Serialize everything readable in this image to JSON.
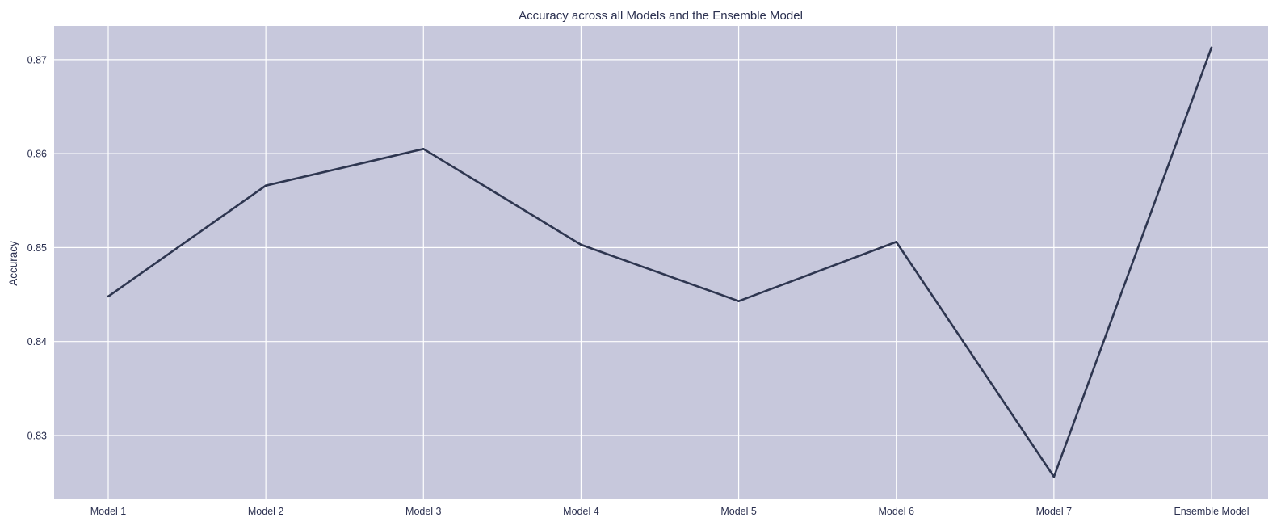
{
  "chart_data": {
    "type": "line",
    "title": "Accuracy across all Models and the Ensemble Model",
    "xlabel": "",
    "ylabel": "Accuracy",
    "categories": [
      "Model 1",
      "Model 2",
      "Model 3",
      "Model 4",
      "Model 5",
      "Model 6",
      "Model 7",
      "Ensemble Model"
    ],
    "values": [
      0.8448,
      0.8566,
      0.8605,
      0.8503,
      0.8443,
      0.8506,
      0.8256,
      0.8713
    ],
    "ylim": [
      0.8232,
      0.8736
    ],
    "yticks": [
      0.83,
      0.84,
      0.85,
      0.86,
      0.87
    ],
    "ytick_labels": [
      "0.83",
      "0.84",
      "0.85",
      "0.86",
      "0.87"
    ],
    "grid": true,
    "colors": {
      "plot_background": "#c7c8dc",
      "grid": "#ffffff",
      "line": "#2e3650",
      "text": "#2b3050"
    }
  }
}
